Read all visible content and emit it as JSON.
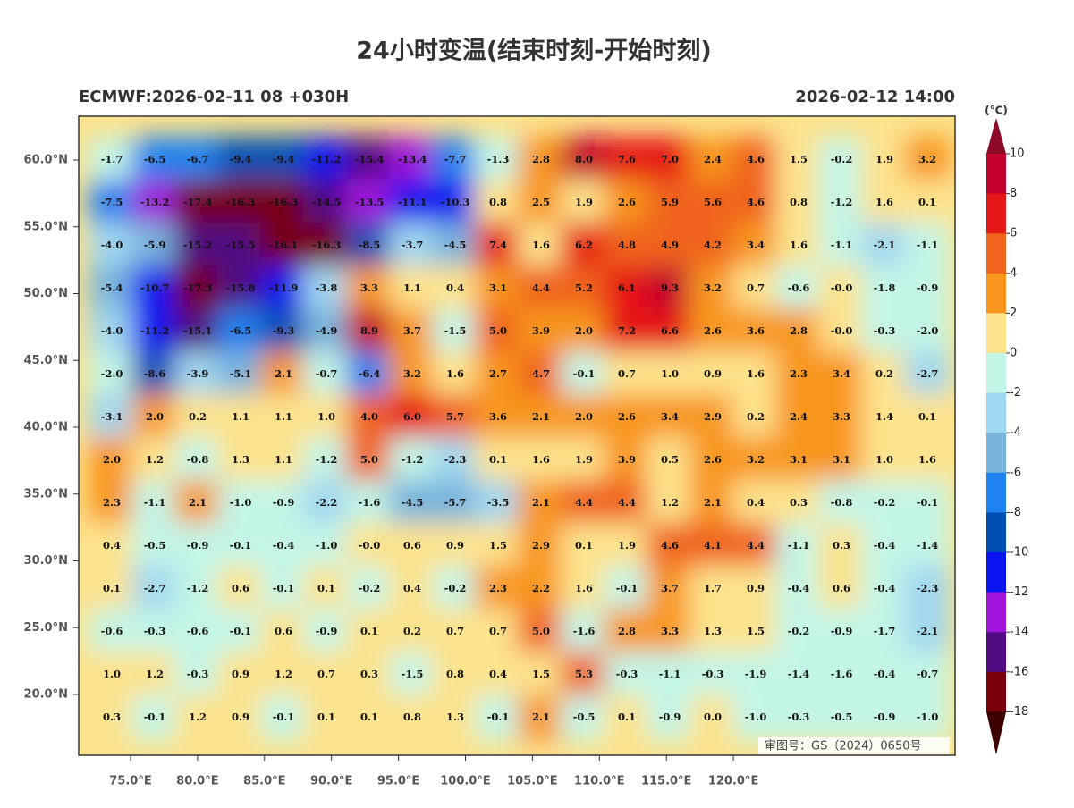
{
  "title": "24小时变温(结束时刻-开始时刻)",
  "subtitle_left": "ECMWF:2026-02-11 08 +030H",
  "subtitle_right": "2026-02-12 14:00",
  "lat_labels": [
    "60.0°N",
    "55.0°N",
    "50.0°N",
    "45.0°N",
    "40.0°N",
    "35.0°N",
    "30.0°N",
    "25.0°N",
    "20.0°N"
  ],
  "lon_labels": [
    "75.0°E",
    "80.0°E",
    "85.0°E",
    "90.0°E",
    "95.0°E",
    "100.0°E",
    "105.0°E",
    "110.0°E",
    "115.0°E",
    "120.0°E"
  ],
  "colorbar": {
    "unit": "(°C)",
    "ticks": [
      10,
      8,
      6,
      4,
      2,
      0,
      -2,
      -4,
      -6,
      -8,
      -10,
      -12,
      -14,
      -16,
      -18
    ],
    "colors": [
      "#8c0a28",
      "#c3002d",
      "#e61919",
      "#f0641e",
      "#f8961e",
      "#fde38c",
      "#c3f5e6",
      "#a0d7f0",
      "#78b4dc",
      "#1e82f0",
      "#0050b4",
      "#0a14f0",
      "#a014dc",
      "#500a82",
      "#78000a",
      "#3c0000"
    ]
  },
  "grid_values": [
    [
      "-1.7",
      "-6.5",
      "-6.7",
      "-9.4",
      "-9.4",
      "-11.2",
      "-15.4",
      "-13.4",
      "-7.7",
      "-1.3",
      "2.8",
      "8.0",
      "7.6",
      "7.0",
      "2.4",
      "4.6",
      "1.5",
      "-0.2",
      "1.9",
      "3.2"
    ],
    [
      "-7.5",
      "-13.2",
      "-17.4",
      "-16.3",
      "-16.3",
      "-14.5",
      "-13.5",
      "-11.1",
      "-10.3",
      "0.8",
      "2.5",
      "1.9",
      "2.6",
      "5.9",
      "5.6",
      "4.6",
      "0.8",
      "-1.2",
      "1.6",
      "0.1"
    ],
    [
      "-4.0",
      "-5.9",
      "-15.2",
      "-15.5",
      "-16.1",
      "-16.3",
      "-8.5",
      "-3.7",
      "-4.5",
      "7.4",
      "1.6",
      "6.2",
      "4.8",
      "4.9",
      "4.2",
      "3.4",
      "1.6",
      "-1.1",
      "-2.1",
      "-1.1"
    ],
    [
      "-5.4",
      "-10.7",
      "-17.3",
      "-15.8",
      "-11.9",
      "-3.8",
      "3.3",
      "1.1",
      "0.4",
      "3.1",
      "4.4",
      "5.2",
      "6.1",
      "9.3",
      "3.2",
      "0.7",
      "-0.6",
      "-0.0",
      "-1.8",
      "-0.9"
    ],
    [
      "-4.0",
      "-11.2",
      "-15.1",
      "-6.5",
      "-9.3",
      "-4.9",
      "8.9",
      "3.7",
      "-1.5",
      "5.0",
      "3.9",
      "2.0",
      "7.2",
      "6.6",
      "2.6",
      "3.6",
      "2.8",
      "-0.0",
      "-0.3",
      "-2.0"
    ],
    [
      "-2.0",
      "-8.6",
      "-3.9",
      "-5.1",
      "2.1",
      "-0.7",
      "-6.4",
      "3.2",
      "1.6",
      "2.7",
      "4.7",
      "-0.1",
      "0.7",
      "1.0",
      "0.9",
      "1.6",
      "2.3",
      "3.4",
      "0.2",
      "-2.7"
    ],
    [
      "-3.1",
      "2.0",
      "0.2",
      "1.1",
      "1.1",
      "1.0",
      "4.0",
      "6.0",
      "5.7",
      "3.6",
      "2.1",
      "2.0",
      "2.6",
      "3.4",
      "2.9",
      "0.2",
      "2.4",
      "3.3",
      "1.4",
      "0.1"
    ],
    [
      "2.0",
      "1.2",
      "-0.8",
      "1.3",
      "1.1",
      "-1.2",
      "5.0",
      "-1.2",
      "-2.3",
      "0.1",
      "1.6",
      "1.9",
      "3.9",
      "0.5",
      "2.6",
      "3.2",
      "3.1",
      "3.1",
      "1.0",
      "1.6"
    ],
    [
      "2.3",
      "-1.1",
      "2.1",
      "-1.0",
      "-0.9",
      "-2.2",
      "-1.6",
      "-4.5",
      "-5.7",
      "-3.5",
      "2.1",
      "4.4",
      "4.4",
      "1.2",
      "2.1",
      "0.4",
      "0.3",
      "-0.8",
      "-0.2",
      "-0.1"
    ],
    [
      "0.4",
      "-0.5",
      "-0.9",
      "-0.1",
      "-0.4",
      "-1.0",
      "-0.0",
      "0.6",
      "0.9",
      "1.5",
      "2.9",
      "0.1",
      "1.9",
      "4.6",
      "4.1",
      "4.4",
      "-1.1",
      "0.3",
      "-0.4",
      "-1.4"
    ],
    [
      "0.1",
      "-2.7",
      "-1.2",
      "0.6",
      "-0.1",
      "0.1",
      "-0.2",
      "0.4",
      "-0.2",
      "2.3",
      "2.2",
      "1.6",
      "-0.1",
      "3.7",
      "1.7",
      "0.9",
      "-0.4",
      "0.6",
      "-0.4",
      "-2.3"
    ],
    [
      "-0.6",
      "-0.3",
      "-0.6",
      "-0.1",
      "0.6",
      "-0.9",
      "0.1",
      "0.2",
      "0.7",
      "0.7",
      "5.0",
      "-1.6",
      "2.8",
      "3.3",
      "1.3",
      "1.5",
      "-0.2",
      "-0.9",
      "-1.7",
      "-2.1"
    ],
    [
      "1.0",
      "1.2",
      "-0.3",
      "0.9",
      "1.2",
      "0.7",
      "0.3",
      "-1.5",
      "0.8",
      "0.4",
      "1.5",
      "5.3",
      "-0.3",
      "-1.1",
      "-0.3",
      "-1.9",
      "-1.4",
      "-1.6",
      "-0.4",
      "-0.7"
    ],
    [
      "0.3",
      "-0.1",
      "1.2",
      "0.9",
      "-0.1",
      "0.1",
      "0.1",
      "0.8",
      "1.3",
      "-0.1",
      "2.1",
      "-0.5",
      "0.1",
      "-0.9",
      "0.0",
      "-1.0",
      "-0.3",
      "-0.5",
      "-0.9",
      "-1.0"
    ]
  ],
  "approval_number": "审图号：GS（2024）0650号"
}
